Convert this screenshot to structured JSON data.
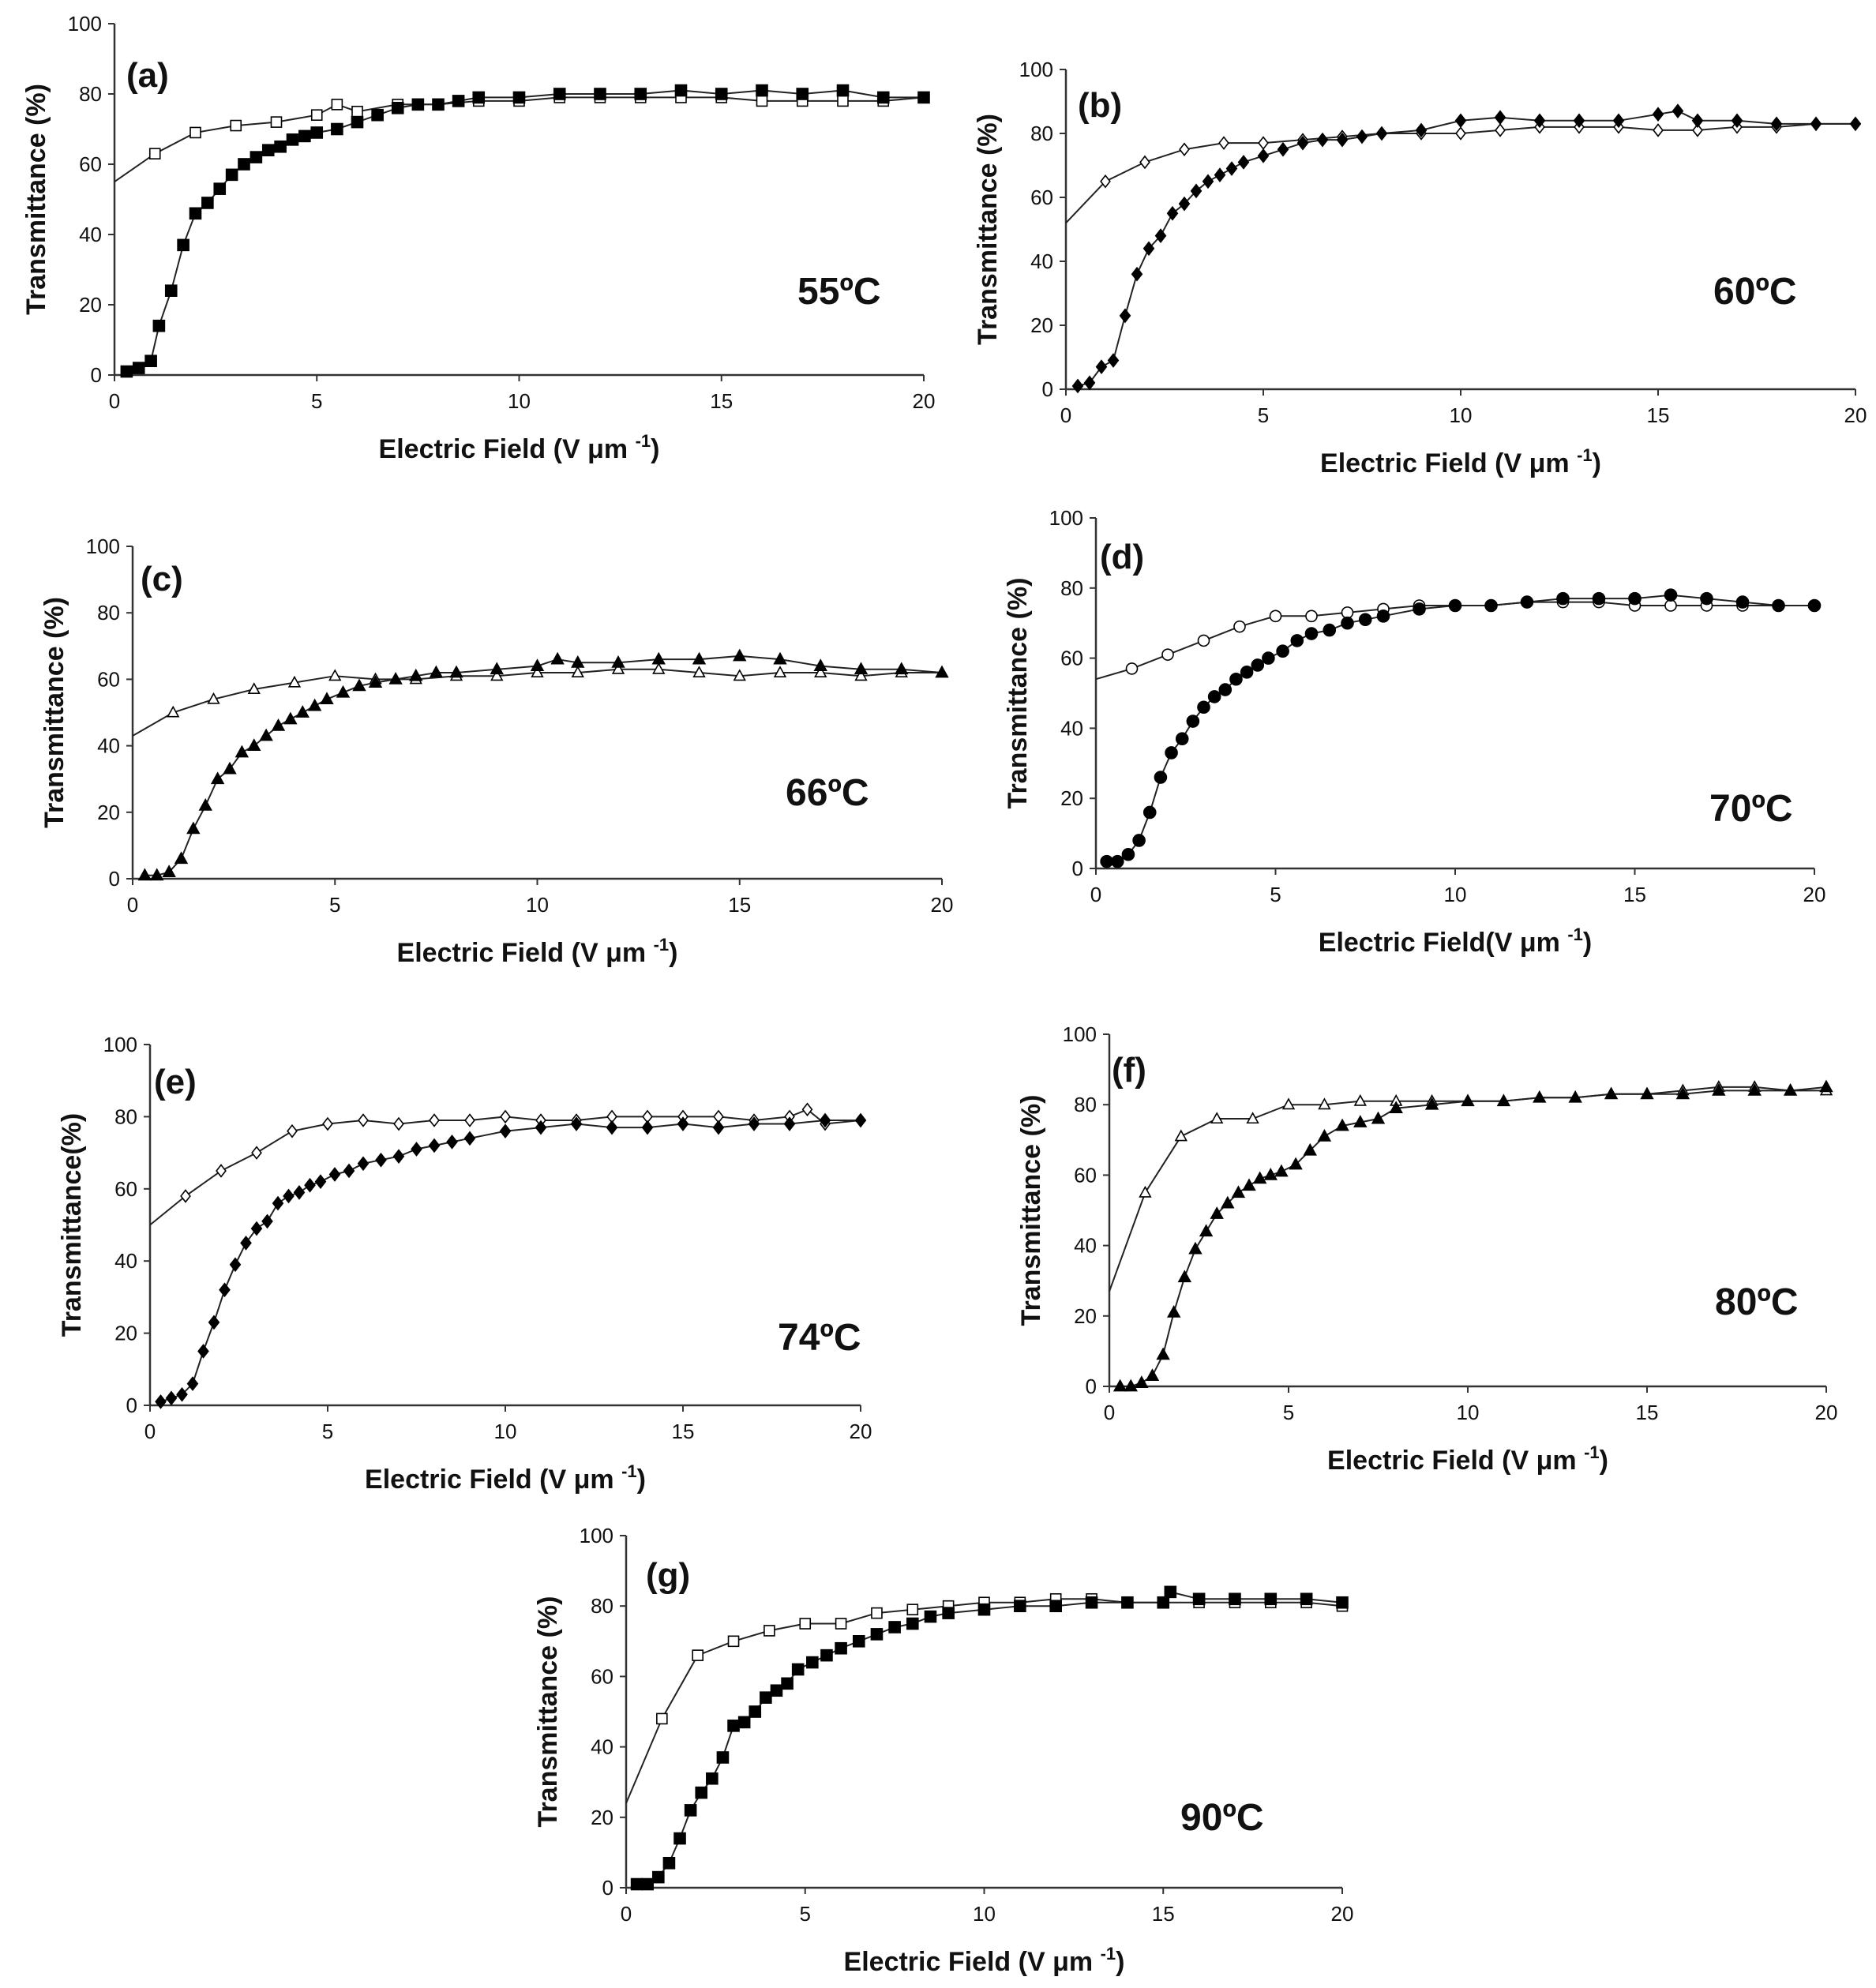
{
  "figure": {
    "description_free": true
  },
  "chart_data": [
    {
      "type": "scatter",
      "panel_label": "(a)",
      "temperature": "55ºC",
      "xlabel": "Electric Field (V μm",
      "xlabel_sup": "-1",
      "xlabel_tail": ")",
      "ylabel": "Transmittance (%)",
      "xlim": [
        0,
        20
      ],
      "ylim": [
        0,
        100
      ],
      "xticks": [
        "0",
        "5",
        "10",
        "15",
        "20"
      ],
      "yticks": [
        "0",
        "20",
        "40",
        "60",
        "80",
        "100"
      ],
      "marker": "square",
      "series": [
        {
          "name": "Open",
          "filled": false,
          "x": [
            0,
            1,
            2,
            3,
            4,
            5,
            5.5,
            6,
            7,
            8,
            9,
            10,
            11,
            12,
            13,
            14,
            15,
            16,
            17,
            18,
            19,
            20
          ],
          "y": [
            55,
            63,
            69,
            71,
            72,
            74,
            77,
            75,
            77,
            77,
            78,
            78,
            79,
            79,
            79,
            79,
            79,
            78,
            78,
            78,
            78,
            79
          ]
        },
        {
          "name": "Filled",
          "filled": true,
          "x": [
            0.3,
            0.6,
            0.9,
            1.1,
            1.4,
            1.7,
            2.0,
            2.3,
            2.6,
            2.9,
            3.2,
            3.5,
            3.8,
            4.1,
            4.4,
            4.7,
            5.0,
            5.5,
            6.0,
            6.5,
            7.0,
            7.5,
            8.0,
            8.5,
            9.0,
            10.0,
            11.0,
            12.0,
            13.0,
            14.0,
            15.0,
            16.0,
            17.0,
            18.0,
            19.0,
            20.0
          ],
          "y": [
            1,
            2,
            4,
            14,
            24,
            37,
            46,
            49,
            53,
            57,
            60,
            62,
            64,
            65,
            67,
            68,
            69,
            70,
            72,
            74,
            76,
            77,
            77,
            78,
            79,
            79,
            80,
            80,
            80,
            81,
            80,
            81,
            80,
            81,
            79,
            79
          ]
        }
      ]
    },
    {
      "type": "scatter",
      "panel_label": "(b)",
      "temperature": "60ºC",
      "xlabel": "Electric Field (V μm",
      "xlabel_sup": "-1",
      "xlabel_tail": ")",
      "ylabel": "Transmittance (%)",
      "xlim": [
        0,
        20
      ],
      "ylim": [
        0,
        100
      ],
      "xticks": [
        "0",
        "5",
        "10",
        "15",
        "20"
      ],
      "yticks": [
        "0",
        "20",
        "40",
        "60",
        "80",
        "100"
      ],
      "marker": "diamond",
      "series": [
        {
          "name": "Open",
          "filled": false,
          "x": [
            0,
            1,
            2,
            3,
            4,
            5,
            6,
            7,
            8,
            9,
            10,
            11,
            12,
            13,
            14,
            15,
            16,
            17,
            18,
            19,
            20
          ],
          "y": [
            52,
            65,
            71,
            75,
            77,
            77,
            78,
            79,
            80,
            80,
            80,
            81,
            82,
            82,
            82,
            81,
            81,
            82,
            82,
            83,
            83
          ]
        },
        {
          "name": "Filled",
          "filled": true,
          "x": [
            0.3,
            0.6,
            0.9,
            1.2,
            1.5,
            1.8,
            2.1,
            2.4,
            2.7,
            3.0,
            3.3,
            3.6,
            3.9,
            4.2,
            4.5,
            5.0,
            5.5,
            6.0,
            6.5,
            7.0,
            7.5,
            8.0,
            9.0,
            10.0,
            11.0,
            12.0,
            13.0,
            14.0,
            15.0,
            15.5,
            16.0,
            17.0,
            18.0,
            19.0,
            20.0
          ],
          "y": [
            1,
            2,
            7,
            9,
            23,
            36,
            44,
            48,
            55,
            58,
            62,
            65,
            67,
            69,
            71,
            73,
            75,
            77,
            78,
            78,
            79,
            80,
            81,
            84,
            85,
            84,
            84,
            84,
            86,
            87,
            84,
            84,
            83,
            83,
            83
          ]
        }
      ]
    },
    {
      "type": "scatter",
      "panel_label": "(c)",
      "temperature": "66ºC",
      "xlabel": "Electric Field (V μm",
      "xlabel_sup": "-1",
      "xlabel_tail": ")",
      "ylabel": "Transmittance (%)",
      "xlim": [
        0,
        20
      ],
      "ylim": [
        0,
        100
      ],
      "xticks": [
        "0",
        "5",
        "10",
        "15",
        "20"
      ],
      "yticks": [
        "0",
        "20",
        "40",
        "60",
        "80",
        "100"
      ],
      "marker": "triangle",
      "series": [
        {
          "name": "Open",
          "filled": false,
          "x": [
            0,
            1,
            2,
            3,
            4,
            5,
            6,
            7,
            8,
            9,
            10,
            11,
            12,
            13,
            14,
            15,
            16,
            17,
            18,
            19,
            20
          ],
          "y": [
            43,
            50,
            54,
            57,
            59,
            61,
            60,
            60,
            61,
            61,
            62,
            62,
            63,
            63,
            62,
            61,
            62,
            62,
            61,
            62,
            62
          ]
        },
        {
          "name": "Filled",
          "filled": true,
          "x": [
            0.3,
            0.6,
            0.9,
            1.2,
            1.5,
            1.8,
            2.1,
            2.4,
            2.7,
            3.0,
            3.3,
            3.6,
            3.9,
            4.2,
            4.5,
            4.8,
            5.2,
            5.6,
            6.0,
            6.5,
            7.0,
            7.5,
            8.0,
            9.0,
            10.0,
            10.5,
            11.0,
            12.0,
            13.0,
            14.0,
            15.0,
            16.0,
            17.0,
            18.0,
            19.0,
            20.0
          ],
          "y": [
            1,
            1,
            2,
            6,
            15,
            22,
            30,
            33,
            38,
            40,
            43,
            46,
            48,
            50,
            52,
            54,
            56,
            58,
            59,
            60,
            61,
            62,
            62,
            63,
            64,
            66,
            65,
            65,
            66,
            66,
            67,
            66,
            64,
            63,
            63,
            62
          ]
        }
      ]
    },
    {
      "type": "scatter",
      "panel_label": "(d)",
      "temperature": "70ºC",
      "xlabel": "Electric Field(V μm",
      "xlabel_sup": "-1",
      "xlabel_tail": ")",
      "ylabel": "Transmittance (%)",
      "xlim": [
        0,
        20
      ],
      "ylim": [
        0,
        100
      ],
      "xticks": [
        "0",
        "5",
        "10",
        "15",
        "20"
      ],
      "yticks": [
        "0",
        "20",
        "40",
        "60",
        "80",
        "100"
      ],
      "marker": "circle",
      "series": [
        {
          "name": "Open",
          "filled": false,
          "x": [
            0,
            1,
            2,
            3,
            4,
            5,
            6,
            7,
            8,
            9,
            10,
            11,
            12,
            13,
            14,
            15,
            16,
            17,
            18,
            19,
            20
          ],
          "y": [
            54,
            57,
            61,
            65,
            69,
            72,
            72,
            73,
            74,
            75,
            75,
            75,
            76,
            76,
            76,
            75,
            75,
            75,
            75,
            75,
            75
          ]
        },
        {
          "name": "Filled",
          "filled": true,
          "x": [
            0.3,
            0.6,
            0.9,
            1.2,
            1.5,
            1.8,
            2.1,
            2.4,
            2.7,
            3.0,
            3.3,
            3.6,
            3.9,
            4.2,
            4.5,
            4.8,
            5.2,
            5.6,
            6.0,
            6.5,
            7.0,
            7.5,
            8.0,
            9.0,
            10.0,
            11.0,
            12.0,
            13.0,
            14.0,
            15.0,
            16.0,
            17.0,
            18.0,
            19.0,
            20.0
          ],
          "y": [
            2,
            2,
            4,
            8,
            16,
            26,
            33,
            37,
            42,
            46,
            49,
            51,
            54,
            56,
            58,
            60,
            62,
            65,
            67,
            68,
            70,
            71,
            72,
            74,
            75,
            75,
            76,
            77,
            77,
            77,
            78,
            77,
            76,
            75,
            75
          ]
        }
      ]
    },
    {
      "type": "scatter",
      "panel_label": "(e)",
      "temperature": "74ºC",
      "xlabel": "Electric Field (V μm",
      "xlabel_sup": "-1",
      "xlabel_tail": ")",
      "ylabel": "Transmittance(%)",
      "xlim": [
        0,
        20
      ],
      "ylim": [
        0,
        100
      ],
      "xticks": [
        "0",
        "5",
        "10",
        "15",
        "20"
      ],
      "yticks": [
        "0",
        "20",
        "40",
        "60",
        "80",
        "100"
      ],
      "marker": "diamond",
      "series": [
        {
          "name": "Open",
          "filled": false,
          "x": [
            0,
            1,
            2,
            3,
            4,
            5,
            6,
            7,
            8,
            9,
            10,
            11,
            12,
            13,
            14,
            15,
            16,
            17,
            18,
            18.5,
            19,
            20
          ],
          "y": [
            50,
            58,
            65,
            70,
            76,
            78,
            79,
            78,
            79,
            79,
            80,
            79,
            79,
            80,
            80,
            80,
            80,
            79,
            80,
            82,
            78,
            79
          ]
        },
        {
          "name": "Filled",
          "filled": true,
          "x": [
            0.3,
            0.6,
            0.9,
            1.2,
            1.5,
            1.8,
            2.1,
            2.4,
            2.7,
            3.0,
            3.3,
            3.6,
            3.9,
            4.2,
            4.5,
            4.8,
            5.2,
            5.6,
            6.0,
            6.5,
            7.0,
            7.5,
            8.0,
            8.5,
            9.0,
            10.0,
            11.0,
            12.0,
            13.0,
            14.0,
            15.0,
            16.0,
            17.0,
            18.0,
            19.0,
            20.0
          ],
          "y": [
            1,
            2,
            3,
            6,
            15,
            23,
            32,
            39,
            45,
            49,
            51,
            56,
            58,
            59,
            61,
            62,
            64,
            65,
            67,
            68,
            69,
            71,
            72,
            73,
            74,
            76,
            77,
            78,
            77,
            77,
            78,
            77,
            78,
            78,
            79,
            79
          ]
        }
      ]
    },
    {
      "type": "scatter",
      "panel_label": "(f)",
      "temperature": "80ºC",
      "xlabel": "Electric Field (V μm",
      "xlabel_sup": "-1",
      "xlabel_tail": ")",
      "ylabel": "Transmittance (%)",
      "xlim": [
        0,
        20
      ],
      "ylim": [
        0,
        100
      ],
      "xticks": [
        "0",
        "5",
        "10",
        "15",
        "20"
      ],
      "yticks": [
        "0",
        "20",
        "40",
        "60",
        "80",
        "100"
      ],
      "marker": "triangle",
      "series": [
        {
          "name": "Open",
          "filled": false,
          "x": [
            0,
            1,
            2,
            3,
            4,
            5,
            6,
            7,
            8,
            9,
            10,
            11,
            12,
            13,
            14,
            15,
            16,
            17,
            18,
            19,
            20
          ],
          "y": [
            27,
            55,
            71,
            76,
            76,
            80,
            80,
            81,
            81,
            81,
            81,
            81,
            82,
            82,
            83,
            83,
            84,
            85,
            85,
            84,
            84
          ]
        },
        {
          "name": "Filled",
          "filled": true,
          "x": [
            0.3,
            0.6,
            0.9,
            1.2,
            1.5,
            1.8,
            2.1,
            2.4,
            2.7,
            3.0,
            3.3,
            3.6,
            3.9,
            4.2,
            4.5,
            4.8,
            5.2,
            5.6,
            6.0,
            6.5,
            7.0,
            7.5,
            8.0,
            9.0,
            10.0,
            11.0,
            12.0,
            13.0,
            14.0,
            15.0,
            16.0,
            17.0,
            18.0,
            19.0,
            20.0
          ],
          "y": [
            0,
            0,
            1,
            3,
            9,
            21,
            31,
            39,
            44,
            49,
            52,
            55,
            57,
            59,
            60,
            61,
            63,
            67,
            71,
            74,
            75,
            76,
            79,
            80,
            81,
            81,
            82,
            82,
            83,
            83,
            83,
            84,
            84,
            84,
            85
          ]
        }
      ]
    },
    {
      "type": "scatter",
      "panel_label": "(g)",
      "temperature": "90ºC",
      "xlabel": "Electric Field (V μm",
      "xlabel_sup": "-1",
      "xlabel_tail": ")",
      "ylabel": "Transmittance (%)",
      "xlim": [
        0,
        20
      ],
      "ylim": [
        0,
        100
      ],
      "xticks": [
        "0",
        "5",
        "10",
        "15",
        "20"
      ],
      "yticks": [
        "0",
        "20",
        "40",
        "60",
        "80",
        "100"
      ],
      "marker": "square",
      "series": [
        {
          "name": "Open",
          "filled": false,
          "x": [
            0,
            1,
            2,
            3,
            4,
            5,
            6,
            7,
            8,
            9,
            10,
            11,
            12,
            13,
            14,
            15,
            16,
            17,
            18,
            19,
            20
          ],
          "y": [
            24,
            48,
            66,
            70,
            73,
            75,
            75,
            78,
            79,
            80,
            81,
            81,
            82,
            82,
            81,
            81,
            81,
            81,
            81,
            81,
            80
          ]
        },
        {
          "name": "Filled",
          "filled": true,
          "x": [
            0.3,
            0.6,
            0.9,
            1.2,
            1.5,
            1.8,
            2.1,
            2.4,
            2.7,
            3.0,
            3.3,
            3.6,
            3.9,
            4.2,
            4.5,
            4.8,
            5.2,
            5.6,
            6.0,
            6.5,
            7.0,
            7.5,
            8.0,
            8.5,
            9.0,
            10.0,
            11.0,
            12.0,
            13.0,
            14.0,
            15.0,
            15.2,
            16.0,
            17.0,
            18.0,
            19.0,
            20.0
          ],
          "y": [
            1,
            1,
            3,
            7,
            14,
            22,
            27,
            31,
            37,
            46,
            47,
            50,
            54,
            56,
            58,
            62,
            64,
            66,
            68,
            70,
            72,
            74,
            75,
            77,
            78,
            79,
            80,
            80,
            81,
            81,
            81,
            84,
            82,
            82,
            82,
            82,
            81
          ]
        }
      ]
    }
  ]
}
